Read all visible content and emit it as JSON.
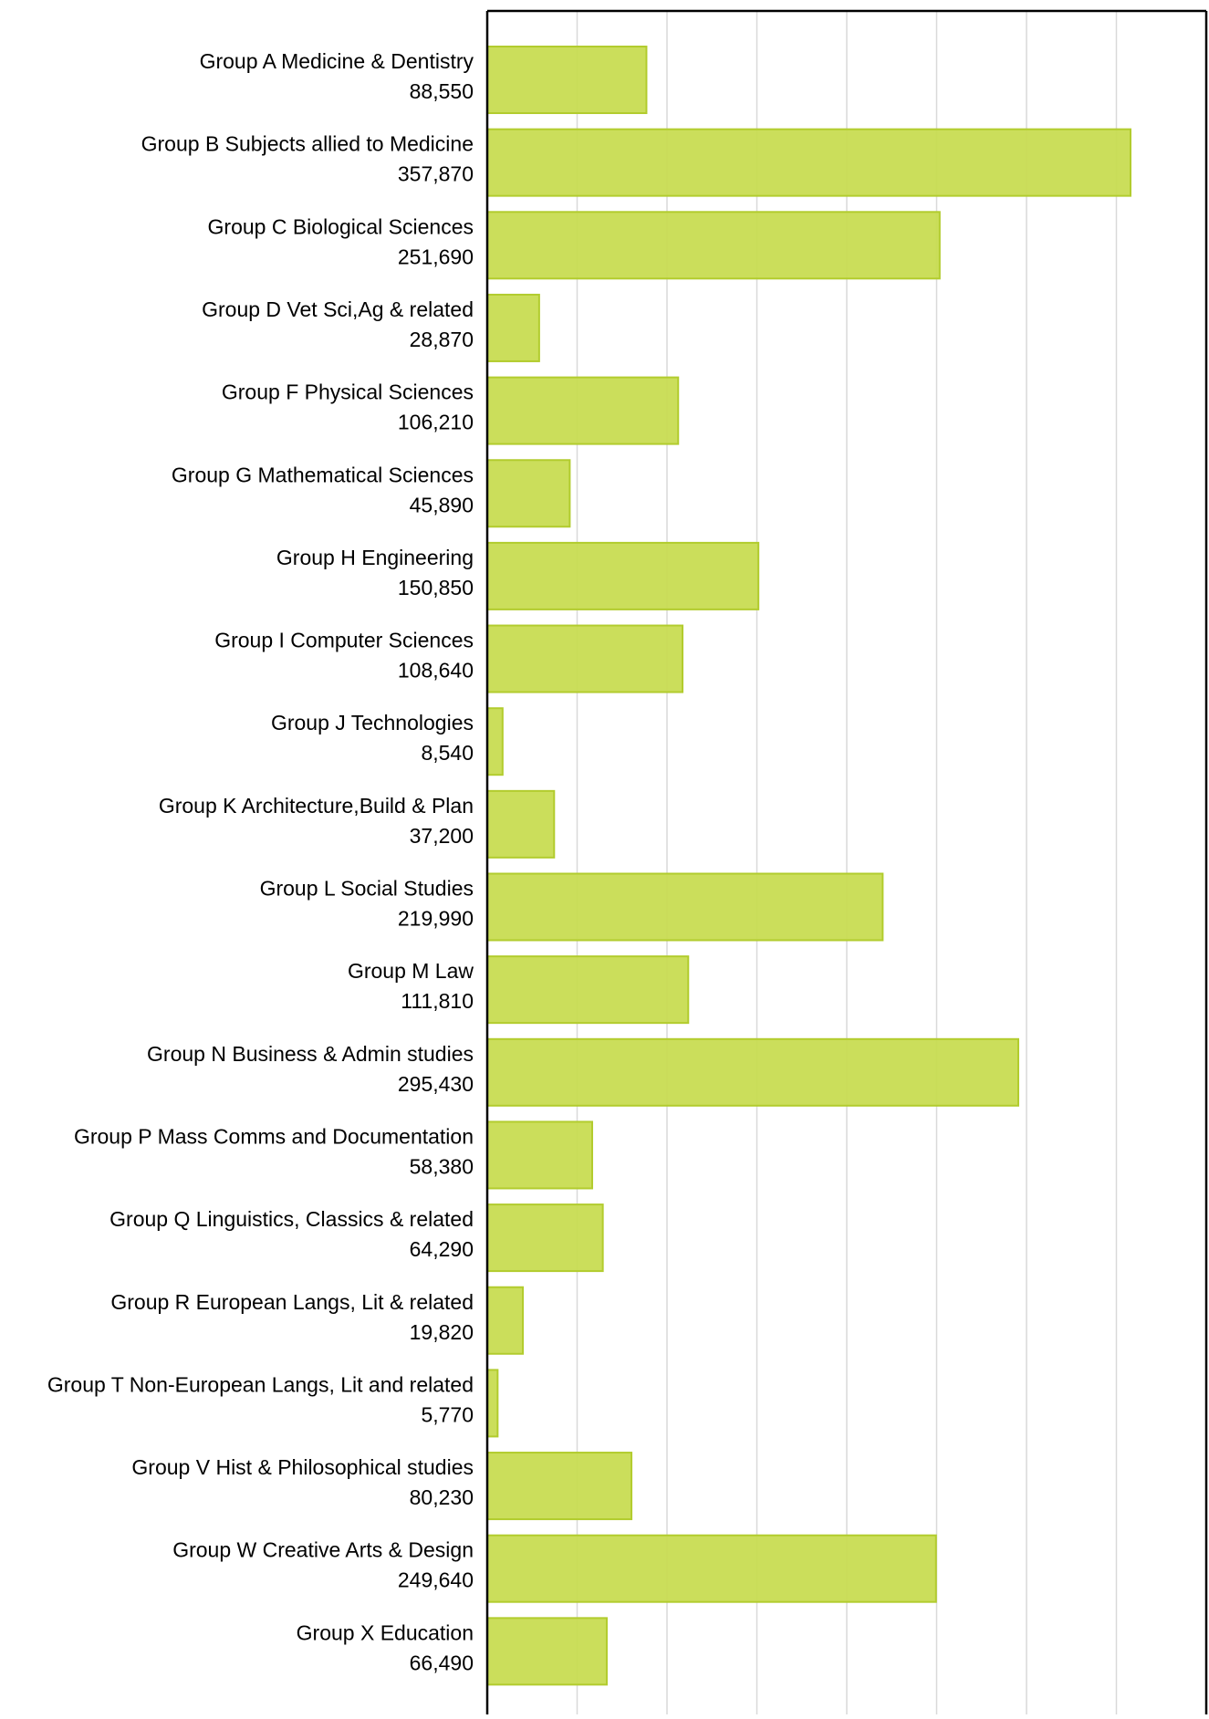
{
  "chart_data": {
    "type": "bar",
    "orientation": "horizontal",
    "categories": [
      "Group A Medicine & Dentistry",
      "Group B Subjects allied to Medicine",
      "Group C Biological Sciences",
      "Group D Vet Sci,Ag & related",
      "Group F Physical Sciences",
      "Group G Mathematical Sciences",
      "Group H Engineering",
      "Group I Computer Sciences",
      "Group J Technologies",
      "Group K Architecture,Build & Plan",
      "Group L Social Studies",
      "Group M Law",
      "Group N Business & Admin studies",
      "Group P Mass Comms and Documentation",
      "Group Q Linguistics, Classics & related",
      "Group R European Langs, Lit & related",
      "Group T Non-European Langs, Lit and related",
      "Group V Hist & Philosophical studies",
      "Group W Creative Arts & Design",
      "Group X Education"
    ],
    "value_labels": [
      "88,550",
      "357,870",
      "251,690",
      "28,870",
      "106,210",
      "45,890",
      "150,850",
      "108,640",
      "8,540",
      "37,200",
      "219,990",
      "111,810",
      "295,430",
      "58,380",
      "64,290",
      "19,820",
      "5,770",
      "80,230",
      "249,640",
      "66,490"
    ],
    "values": [
      88550,
      357870,
      251690,
      28870,
      106210,
      45890,
      150850,
      108640,
      8540,
      37200,
      219990,
      111810,
      295430,
      58380,
      64290,
      19820,
      5770,
      80230,
      249640,
      66490
    ],
    "xlim": [
      0,
      400000
    ],
    "gridlines": true,
    "tick_labels_visible": false,
    "colors": {
      "bar_fill": "#c8dc52",
      "bar_stroke": "#b2cc2e",
      "grid": "#d9d9d9",
      "axis": "#000000",
      "text": "#000000"
    }
  }
}
